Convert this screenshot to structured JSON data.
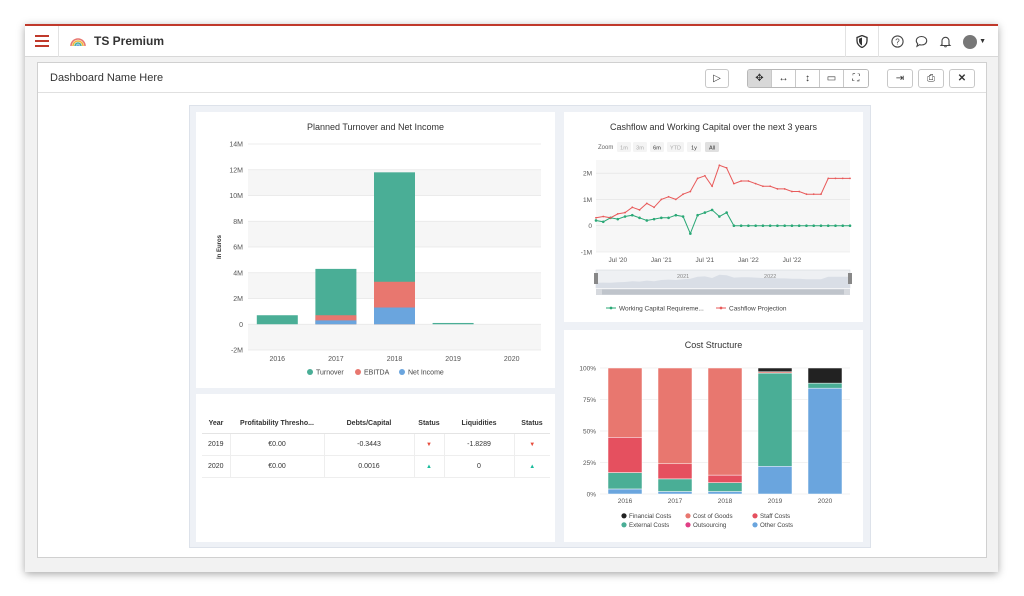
{
  "app": {
    "title": "TS Premium"
  },
  "dashboard": {
    "name": "Dashboard Name Here"
  },
  "toolbar": {
    "play": "▷",
    "move": "✥",
    "resize_h": "↔",
    "resize_v": "↕",
    "devices": "▭",
    "fullscreen": "⛶",
    "export": "⇥",
    "print": "⎙",
    "close": "✕"
  },
  "icons": {
    "help": "?",
    "chat": "○",
    "bell": "♫"
  },
  "turnover_chart": {
    "title": "Planned Turnover and Net Income",
    "ylabel": "In Euros",
    "categories": [
      "2016",
      "2017",
      "2018",
      "2019",
      "2020"
    ],
    "yticks": [
      "14M",
      "12M",
      "10M",
      "8M",
      "6M",
      "4M",
      "2M",
      "0",
      "-2M"
    ],
    "legend": [
      "Turnover",
      "EBITDA",
      "Net Income"
    ]
  },
  "cashflow_chart": {
    "title": "Cashflow and Working Capital over the next 3 years",
    "zoom_label": "Zoom",
    "zoom_buttons": [
      "1m",
      "3m",
      "6m",
      "YTD",
      "1y",
      "All"
    ],
    "yticks": [
      "2M",
      "1M",
      "0",
      "-1M"
    ],
    "xticks": [
      "Jul '20",
      "Jan '21",
      "Jul '21",
      "Jan '22",
      "Jul '22"
    ],
    "navigator_labels": [
      "2021",
      "2022"
    ],
    "legend": [
      "Working Capital Requireme...",
      "Cashflow Projection"
    ]
  },
  "kpi_table": {
    "headers": [
      "Year",
      "Profitability Thresho...",
      "Debts/Capital",
      "Status",
      "Liquidities",
      "Status"
    ],
    "rows": [
      {
        "year": "2019",
        "profit": "€0.00",
        "debts": "-0.3443",
        "status1": "▼",
        "liquid": "-1.8289",
        "status2": "▼"
      },
      {
        "year": "2020",
        "profit": "€0.00",
        "debts": "0.0016",
        "status1": "▲",
        "liquid": "0",
        "status2": "▲"
      }
    ]
  },
  "cost_chart": {
    "title": "Cost Structure",
    "yticks": [
      "100%",
      "75%",
      "50%",
      "25%",
      "0%"
    ],
    "categories": [
      "2016",
      "2017",
      "2018",
      "2019",
      "2020"
    ],
    "legend": [
      "Financial Costs",
      "Cost of Goods",
      "Staff Costs",
      "External Costs",
      "Outsourcing",
      "Other Costs"
    ]
  },
  "colors": {
    "turnover": "#4aae96",
    "ebitda": "#e8776f",
    "netincome": "#6aa5de",
    "staff": "#e5505f",
    "outsourcing": "#e03f86",
    "financial": "#222222",
    "accent": "#c0392b"
  },
  "chart_data": [
    {
      "type": "bar",
      "title": "Planned Turnover and Net Income",
      "ylabel": "In Euros",
      "categories": [
        "2016",
        "2017",
        "2018",
        "2019",
        "2020"
      ],
      "ylim": [
        -2000000,
        14000000
      ],
      "series": [
        {
          "name": "Turnover",
          "values": [
            700000,
            4300000,
            11800000,
            100000,
            0
          ]
        },
        {
          "name": "EBITDA",
          "values": [
            0,
            700000,
            3300000,
            0,
            0
          ]
        },
        {
          "name": "Net Income",
          "values": [
            0,
            300000,
            1300000,
            0,
            0
          ]
        }
      ]
    },
    {
      "type": "line",
      "title": "Cashflow and Working Capital over the next 3 years",
      "ylim": [
        -1000000,
        2500000
      ],
      "x": [
        "2020-04",
        "2020-05",
        "2020-06",
        "2020-07",
        "2020-08",
        "2020-09",
        "2020-10",
        "2020-11",
        "2020-12",
        "2021-01",
        "2021-02",
        "2021-03",
        "2021-04",
        "2021-05",
        "2021-06",
        "2021-07",
        "2021-08",
        "2021-09",
        "2021-10",
        "2021-11",
        "2021-12",
        "2022-01",
        "2022-02",
        "2022-03",
        "2022-04",
        "2022-05",
        "2022-06",
        "2022-07",
        "2022-08",
        "2022-09",
        "2022-10",
        "2022-11",
        "2022-12",
        "2023-01",
        "2023-02",
        "2023-03"
      ],
      "series": [
        {
          "name": "Working Capital Requireme...",
          "values": [
            200000,
            150000,
            300000,
            250000,
            350000,
            400000,
            300000,
            200000,
            250000,
            300000,
            300000,
            400000,
            350000,
            -300000,
            400000,
            500000,
            600000,
            350000,
            500000,
            0,
            0,
            0,
            0,
            0,
            0,
            0,
            0,
            0,
            0,
            0,
            0,
            0,
            0,
            0,
            0,
            0
          ]
        },
        {
          "name": "Cashflow Projection",
          "values": [
            300000,
            350000,
            300000,
            450000,
            500000,
            700000,
            600000,
            850000,
            700000,
            1000000,
            1100000,
            1000000,
            1200000,
            1300000,
            1800000,
            1900000,
            1500000,
            2300000,
            2200000,
            1600000,
            1700000,
            1700000,
            1600000,
            1500000,
            1500000,
            1400000,
            1400000,
            1300000,
            1300000,
            1200000,
            1200000,
            1200000,
            1800000,
            1800000,
            1800000,
            1800000
          ]
        }
      ]
    },
    {
      "type": "bar",
      "title": "Cost Structure",
      "categories": [
        "2016",
        "2017",
        "2018",
        "2019",
        "2020"
      ],
      "ylim": [
        0,
        100
      ],
      "series": [
        {
          "name": "Other Costs",
          "values": [
            4,
            2,
            2,
            22,
            84
          ]
        },
        {
          "name": "External Costs",
          "values": [
            13,
            10,
            7,
            74,
            4
          ]
        },
        {
          "name": "Staff Costs",
          "values": [
            28,
            12,
            6,
            0,
            0
          ]
        },
        {
          "name": "Cost of Goods",
          "values": [
            55,
            76,
            85,
            1,
            0
          ]
        },
        {
          "name": "Outsourcing",
          "values": [
            0,
            0,
            0,
            0,
            0
          ]
        },
        {
          "name": "Financial Costs",
          "values": [
            0,
            0,
            0,
            3,
            12
          ]
        }
      ]
    }
  ]
}
